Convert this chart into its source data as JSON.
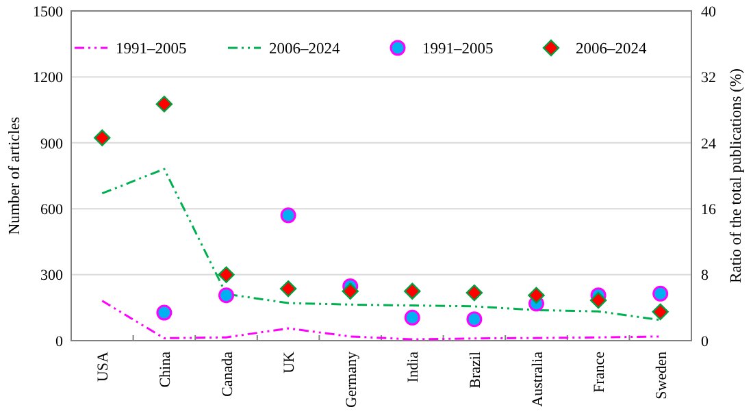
{
  "chart_data": {
    "type": "line",
    "ylabel": "Number of articles",
    "y2label": "Ratio of the total publications (%)",
    "categories": [
      "USA",
      "China",
      "Canada",
      "UK",
      "Germany",
      "India",
      "Brazil",
      "Australia",
      "France",
      "Sweden"
    ],
    "series": [
      {
        "name": "1991–2005",
        "color": "#ff00ff",
        "line_style": "dashed",
        "marker": "none",
        "axis": "y",
        "values": [
          181,
          11,
          15,
          56,
          19,
          6,
          10,
          12,
          15,
          19
        ]
      },
      {
        "name": "2006–2024",
        "color": "#00b050",
        "line_style": "dashed",
        "marker": "none",
        "axis": "y",
        "values": [
          670,
          781,
          212,
          171,
          164,
          160,
          156,
          139,
          133,
          94
        ]
      },
      {
        "name": "1991–2005",
        "type": "scatter",
        "color": "#00b0f0",
        "marker": "circle",
        "axis": "y2",
        "values": [
          null,
          3.4,
          5.5,
          15.2,
          6.6,
          2.8,
          2.6,
          4.5,
          5.5,
          5.7
        ]
      },
      {
        "name": "2006–2024",
        "type": "scatter",
        "color": "#ff0000",
        "marker": "diamond",
        "axis": "y2",
        "values": [
          24.6,
          28.7,
          8.0,
          6.3,
          6.0,
          6.0,
          5.8,
          5.5,
          4.9,
          3.5
        ]
      }
    ],
    "ylim": [
      0,
      1500
    ],
    "yticks": [
      0,
      300,
      600,
      900,
      1200,
      1500
    ],
    "y2lim": [
      0,
      40
    ],
    "y2ticks": [
      0,
      8,
      16,
      24,
      32,
      40
    ],
    "grid": "y",
    "legend": "top"
  }
}
